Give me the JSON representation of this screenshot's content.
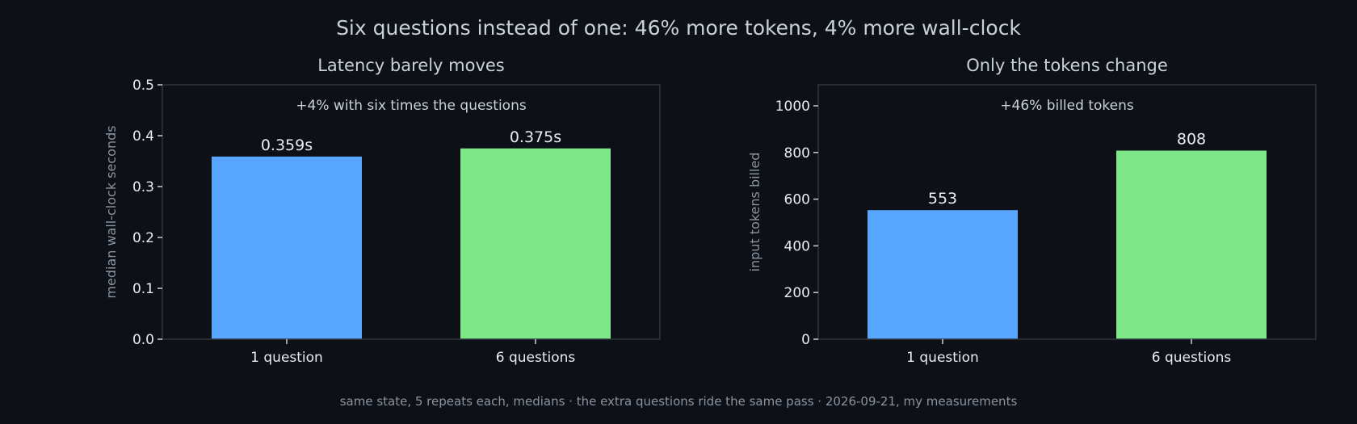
{
  "title": "Six questions instead of one: 46% more tokens, 4% more wall-clock",
  "footer": "same state, 5 repeats each, medians · the extra questions ride the same pass · 2026-09-21, my measurements",
  "colors": {
    "background": "#0d1017",
    "bar_one": "#58a6ff",
    "bar_six": "#7ee787",
    "frame": "#30363d",
    "text": "#c9d1d9"
  },
  "chart_data": [
    {
      "type": "bar",
      "title": "Latency barely moves",
      "categories": [
        "1 question",
        "6 questions"
      ],
      "values": [
        0.359,
        0.375
      ],
      "value_labels": [
        "0.359s",
        "0.375s"
      ],
      "ylabel": "median wall-clock seconds",
      "ylim": [
        0,
        0.5
      ],
      "yticks": [
        0.0,
        0.1,
        0.2,
        0.3,
        0.4,
        0.5
      ],
      "ytick_labels": [
        "0.0",
        "0.1",
        "0.2",
        "0.3",
        "0.4",
        "0.5"
      ],
      "annotation": "+4% with six times the questions",
      "grid": false
    },
    {
      "type": "bar",
      "title": "Only the tokens change",
      "categories": [
        "1 question",
        "6 questions"
      ],
      "values": [
        553,
        808
      ],
      "value_labels": [
        "553",
        "808"
      ],
      "ylabel": "input tokens billed",
      "ylim": [
        0,
        1090
      ],
      "yticks": [
        0,
        200,
        400,
        600,
        800,
        1000
      ],
      "ytick_labels": [
        "0",
        "200",
        "400",
        "600",
        "800",
        "1000"
      ],
      "annotation": "+46% billed tokens",
      "grid": false
    }
  ]
}
